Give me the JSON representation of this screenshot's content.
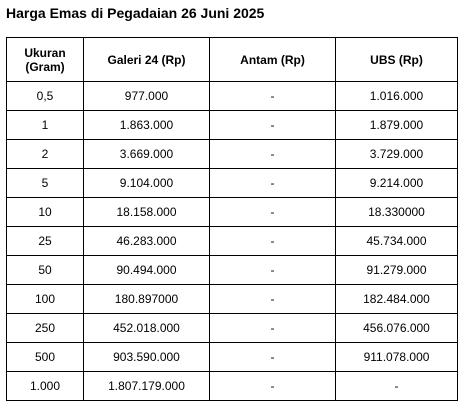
{
  "title": "Harga Emas di Pegadaian 26 Juni 2025",
  "table": {
    "headers": {
      "size_line1": "Ukuran",
      "size_line2": "(Gram)",
      "galeri24": "Galeri 24 (Rp)",
      "antam": "Antam (Rp)",
      "ubs": "UBS (Rp)"
    },
    "rows": [
      {
        "size": "0,5",
        "galeri24": "977.000",
        "antam": "-",
        "ubs": "1.016.000"
      },
      {
        "size": "1",
        "galeri24": "1.863.000",
        "antam": "-",
        "ubs": "1.879.000"
      },
      {
        "size": "2",
        "galeri24": "3.669.000",
        "antam": "-",
        "ubs": "3.729.000"
      },
      {
        "size": "5",
        "galeri24": "9.104.000",
        "antam": "-",
        "ubs": "9.214.000"
      },
      {
        "size": "10",
        "galeri24": "18.158.000",
        "antam": "-",
        "ubs": "18.330000"
      },
      {
        "size": "25",
        "galeri24": "46.283.000",
        "antam": "-",
        "ubs": "45.734.000"
      },
      {
        "size": "50",
        "galeri24": "90.494.000",
        "antam": "-",
        "ubs": "91.279.000"
      },
      {
        "size": "100",
        "galeri24": "180.897000",
        "antam": "-",
        "ubs": "182.484.000"
      },
      {
        "size": "250",
        "galeri24": "452.018.000",
        "antam": "-",
        "ubs": "456.076.000"
      },
      {
        "size": "500",
        "galeri24": "903.590.000",
        "antam": "-",
        "ubs": "911.078.000"
      },
      {
        "size": "1.000",
        "galeri24": "1.807.179.000",
        "antam": "-",
        "ubs": "-"
      }
    ]
  }
}
